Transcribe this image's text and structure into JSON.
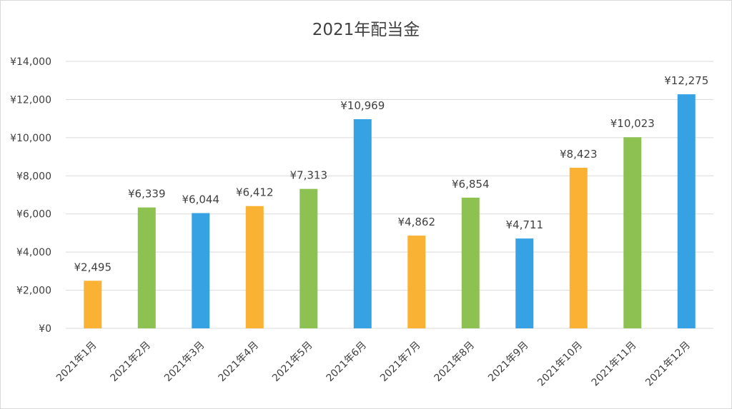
{
  "chart_data": {
    "type": "bar",
    "title": "2021年配当金",
    "categories": [
      "2021年1月",
      "2021年2月",
      "2021年3月",
      "2021年4月",
      "2021年5月",
      "2021年6月",
      "2021年7月",
      "2021年8月",
      "2021年9月",
      "2021年10月",
      "2021年11月",
      "2021年12月"
    ],
    "values": [
      2495,
      6339,
      6044,
      6412,
      7313,
      10969,
      4862,
      6854,
      4711,
      8423,
      10023,
      12275
    ],
    "value_labels": [
      "¥2,495",
      "¥6,339",
      "¥6,044",
      "¥6,412",
      "¥7,313",
      "¥10,969",
      "¥4,862",
      "¥6,854",
      "¥4,711",
      "¥8,423",
      "¥10,023",
      "¥12,275"
    ],
    "bar_colors": [
      "#F9B233",
      "#8DC152",
      "#36A2E3",
      "#F9B233",
      "#8DC152",
      "#36A2E3",
      "#F9B233",
      "#8DC152",
      "#36A2E3",
      "#F9B233",
      "#8DC152",
      "#36A2E3"
    ],
    "ylim": [
      0,
      14000
    ],
    "yticks": [
      0,
      2000,
      4000,
      6000,
      8000,
      10000,
      12000,
      14000
    ],
    "ytick_labels": [
      "¥0",
      "¥2,000",
      "¥4,000",
      "¥6,000",
      "¥8,000",
      "¥10,000",
      "¥12,000",
      "¥14,000"
    ],
    "xlabel": "",
    "ylabel": "",
    "grid": true,
    "gridline_color": "#d9d9d9",
    "legend": "none"
  }
}
